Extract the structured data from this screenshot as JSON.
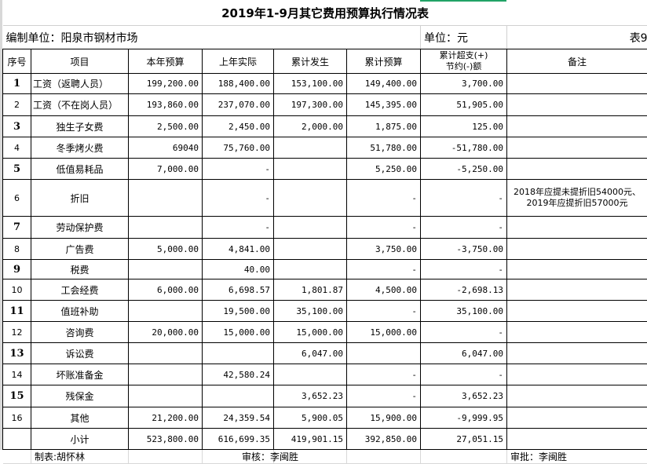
{
  "title": "2019年1-9月其它费用预算执行情况表",
  "org_label": "编制单位：阳泉市钢材市场",
  "unit_label": "单位：元",
  "table_no": "表9",
  "headers": [
    "序号",
    "项目",
    "本年预算",
    "上年实际",
    "累计发生",
    "累计预算",
    "累计超支(+)\n节约(-)额",
    "备注"
  ],
  "header_over_line1": "累计超支(+)",
  "header_over_line2": "节约(-)额",
  "rows": [
    {
      "seq": "1",
      "item": "工资（返聘人员）",
      "budget": "199,200.00",
      "last": "188,400.00",
      "cum": "153,100.00",
      "cumbud": "149,400.00",
      "diff": "3,700.00",
      "note": ""
    },
    {
      "seq": "2",
      "item": "工资（不在岗人员）",
      "budget": "193,860.00",
      "last": "237,070.00",
      "cum": "197,300.00",
      "cumbud": "145,395.00",
      "diff": "51,905.00",
      "note": ""
    },
    {
      "seq": "3",
      "item": "独生子女费",
      "budget": "2,500.00",
      "last": "2,450.00",
      "cum": "2,000.00",
      "cumbud": "1,875.00",
      "diff": "125.00",
      "note": ""
    },
    {
      "seq": "4",
      "item": "冬季烤火费",
      "budget": "69040",
      "last": "75,760.00",
      "cum": "",
      "cumbud": "51,780.00",
      "diff": "-51,780.00",
      "note": ""
    },
    {
      "seq": "5",
      "item": "低值易耗品",
      "budget": "7,000.00",
      "last": "-",
      "cum": "",
      "cumbud": "5,250.00",
      "diff": "-5,250.00",
      "note": ""
    },
    {
      "seq": "6",
      "item": "折旧",
      "budget": "",
      "last": "-",
      "cum": "",
      "cumbud": "-",
      "diff": "-",
      "note": "2018年应提未提折旧54000元、2019年应提折旧57000元"
    },
    {
      "seq": "7",
      "item": "劳动保护费",
      "budget": "",
      "last": "-",
      "cum": "",
      "cumbud": "-",
      "diff": "-",
      "note": ""
    },
    {
      "seq": "8",
      "item": "广告费",
      "budget": "5,000.00",
      "last": "4,841.00",
      "cum": "",
      "cumbud": "3,750.00",
      "diff": "-3,750.00",
      "note": ""
    },
    {
      "seq": "9",
      "item": "税费",
      "budget": "",
      "last": "40.00",
      "cum": "",
      "cumbud": "-",
      "diff": "-",
      "note": ""
    },
    {
      "seq": "10",
      "item": "工会经费",
      "budget": "6,000.00",
      "last": "6,698.57",
      "cum": "1,801.87",
      "cumbud": "4,500.00",
      "diff": "-2,698.13",
      "note": ""
    },
    {
      "seq": "11",
      "item": "值班补助",
      "budget": "",
      "last": "19,500.00",
      "cum": "35,100.00",
      "cumbud": "-",
      "diff": "35,100.00",
      "note": ""
    },
    {
      "seq": "12",
      "item": "咨询费",
      "budget": "20,000.00",
      "last": "15,000.00",
      "cum": "15,000.00",
      "cumbud": "15,000.00",
      "diff": "-",
      "note": ""
    },
    {
      "seq": "13",
      "item": "诉讼费",
      "budget": "",
      "last": "",
      "cum": "6,047.00",
      "cumbud": "",
      "diff": "6,047.00",
      "note": ""
    },
    {
      "seq": "14",
      "item": "坏账准备金",
      "budget": "",
      "last": "42,580.24",
      "cum": "",
      "cumbud": "-",
      "diff": "-",
      "note": ""
    },
    {
      "seq": "15",
      "item": "残保金",
      "budget": "",
      "last": "",
      "cum": "3,652.23",
      "cumbud": "-",
      "diff": "3,652.23",
      "note": ""
    },
    {
      "seq": "16",
      "item": "其他",
      "budget": "21,200.00",
      "last": "24,359.54",
      "cum": "5,900.05",
      "cumbud": "15,900.00",
      "diff": "-9,999.95",
      "note": ""
    },
    {
      "seq": "",
      "item": "小计",
      "budget": "523,800.00",
      "last": "616,699.35",
      "cum": "419,901.15",
      "cumbud": "392,850.00",
      "diff": "27,051.15",
      "note": ""
    }
  ],
  "footer": {
    "prepared": "制表:胡怀林",
    "reviewed": "审核：李闽胜",
    "approved": "审批：李闽胜"
  }
}
